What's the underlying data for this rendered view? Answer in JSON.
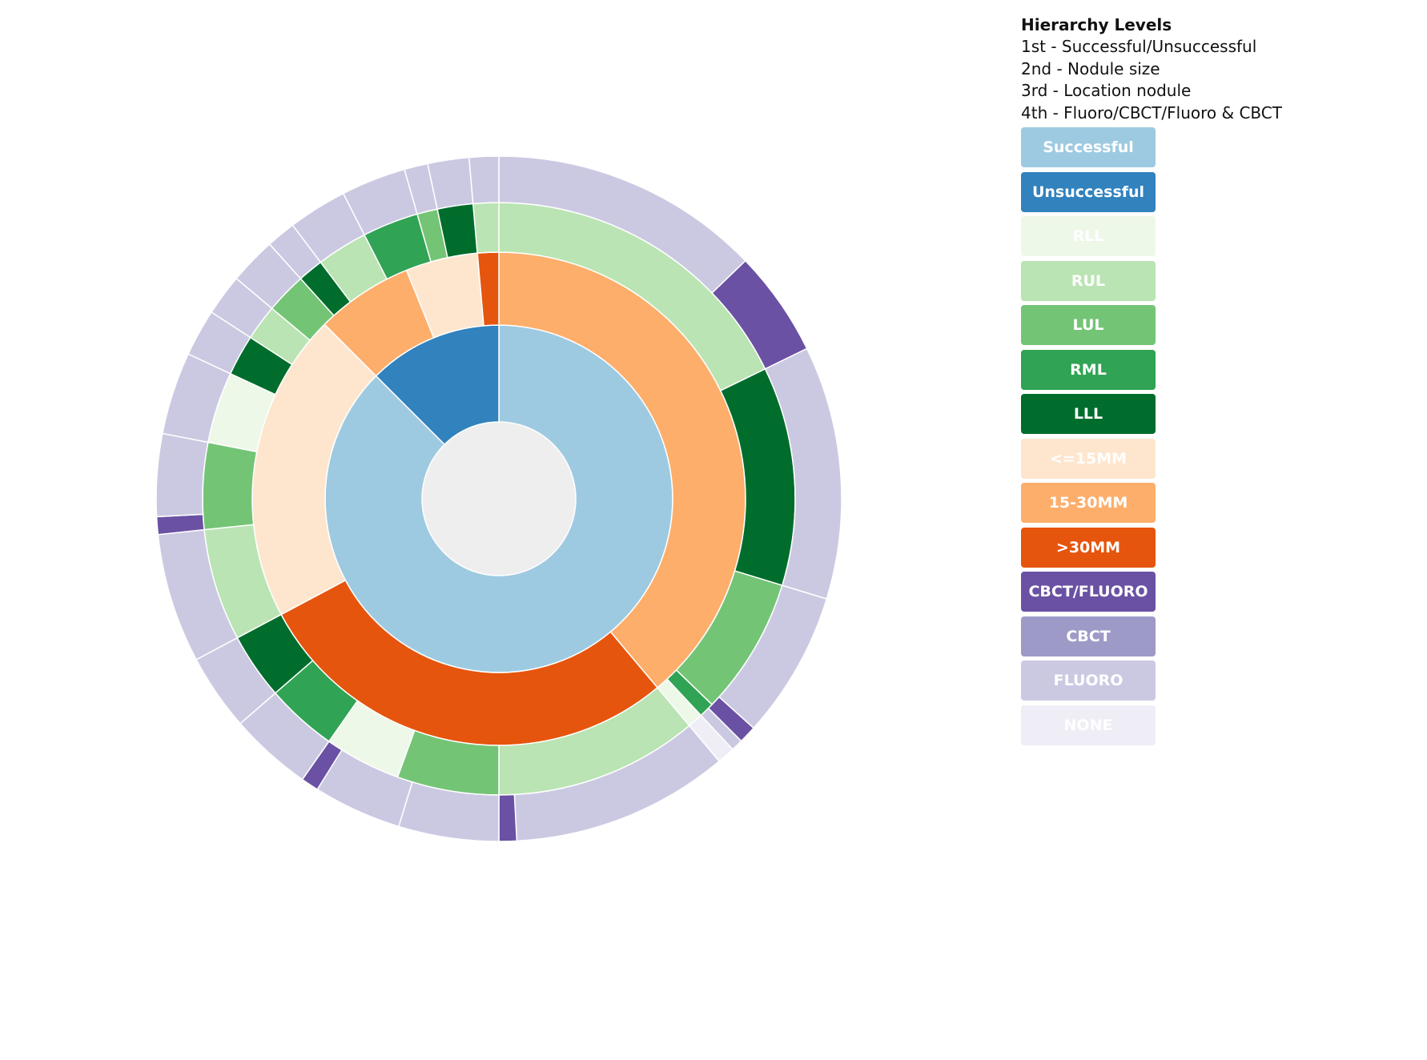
{
  "legend": {
    "title": "Hierarchy Levels",
    "levels": [
      "1st - Successful/Unsuccessful",
      "2nd - Nodule size",
      "3rd - Location nodule",
      "4th - Fluoro/CBCT/Fluoro & CBCT"
    ],
    "items": [
      {
        "label": "Successful",
        "color": "#9ecae1"
      },
      {
        "label": "Unsuccessful",
        "color": "#3182bd"
      },
      {
        "label": "RLL",
        "color": "#edf8e9"
      },
      {
        "label": "RUL",
        "color": "#bae4b3"
      },
      {
        "label": "LUL",
        "color": "#74c476"
      },
      {
        "label": "RML",
        "color": "#31a354"
      },
      {
        "label": "LLL",
        "color": "#006d2c"
      },
      {
        "label": "<=15MM",
        "color": "#fee6ce"
      },
      {
        "label": "15-30MM",
        "color": "#fdae6b"
      },
      {
        "label": ">30MM",
        "color": "#e6550d"
      },
      {
        "label": "CBCT/FLUORO",
        "color": "#6a51a3"
      },
      {
        "label": "CBCT",
        "color": "#9e9ac8"
      },
      {
        "label": "FLUORO",
        "color": "#cbc9e2"
      },
      {
        "label": "NONE",
        "color": "#efedf5"
      }
    ]
  },
  "chart_data": {
    "type": "sunburst",
    "unit": "degrees of full circle (clockwise from 12 o'clock)",
    "center_color": "#eeeeee",
    "rings": [
      {
        "level": "Successful/Unsuccessful",
        "segments": [
          {
            "category": "Successful",
            "start": 0,
            "end": 315
          },
          {
            "category": "Unsuccessful",
            "start": 315,
            "end": 360
          }
        ]
      },
      {
        "level": "Nodule size",
        "segments": [
          {
            "category": "15-30MM",
            "start": 0,
            "end": 140
          },
          {
            "category": ">30MM",
            "start": 140,
            "end": 242
          },
          {
            "category": "<=15MM",
            "start": 242,
            "end": 315
          },
          {
            "category": "15-30MM",
            "start": 315,
            "end": 338
          },
          {
            "category": "<=15MM",
            "start": 338,
            "end": 355
          },
          {
            "category": ">30MM",
            "start": 355,
            "end": 360
          }
        ]
      },
      {
        "level": "Location nodule",
        "segments": [
          {
            "category": "RUL",
            "start": 0,
            "end": 64
          },
          {
            "category": "LLL",
            "start": 64,
            "end": 107
          },
          {
            "category": "LUL",
            "start": 107,
            "end": 134
          },
          {
            "category": "RML",
            "start": 134,
            "end": 137
          },
          {
            "category": "RLL",
            "start": 137,
            "end": 140
          },
          {
            "category": "RUL",
            "start": 140,
            "end": 180
          },
          {
            "category": "LUL",
            "start": 180,
            "end": 200
          },
          {
            "category": "RLL",
            "start": 200,
            "end": 215
          },
          {
            "category": "RML",
            "start": 215,
            "end": 229
          },
          {
            "category": "LLL",
            "start": 229,
            "end": 242
          },
          {
            "category": "RUL",
            "start": 242,
            "end": 264
          },
          {
            "category": "LUL",
            "start": 264,
            "end": 281
          },
          {
            "category": "RLL",
            "start": 281,
            "end": 295
          },
          {
            "category": "LLL",
            "start": 295,
            "end": 303
          },
          {
            "category": "RUL",
            "start": 303,
            "end": 310
          },
          {
            "category": "LUL",
            "start": 310,
            "end": 318
          },
          {
            "category": "LLL",
            "start": 318,
            "end": 323
          },
          {
            "category": "RUL",
            "start": 323,
            "end": 333
          },
          {
            "category": "RML",
            "start": 333,
            "end": 344
          },
          {
            "category": "LUL",
            "start": 344,
            "end": 348
          },
          {
            "category": "LLL",
            "start": 348,
            "end": 355
          },
          {
            "category": "RUL",
            "start": 355,
            "end": 360
          }
        ]
      },
      {
        "level": "Fluoro/CBCT/Fluoro & CBCT",
        "segments": [
          {
            "category": "FLUORO",
            "start": 0,
            "end": 46
          },
          {
            "category": "CBCT/FLUORO",
            "start": 46,
            "end": 64
          },
          {
            "category": "FLUORO",
            "start": 64,
            "end": 107
          },
          {
            "category": "FLUORO",
            "start": 107,
            "end": 132
          },
          {
            "category": "CBCT/FLUORO",
            "start": 132,
            "end": 135
          },
          {
            "category": "FLUORO",
            "start": 135,
            "end": 137
          },
          {
            "category": "NONE",
            "start": 137,
            "end": 140
          },
          {
            "category": "FLUORO",
            "start": 140,
            "end": 177
          },
          {
            "category": "CBCT/FLUORO",
            "start": 177,
            "end": 180
          },
          {
            "category": "FLUORO",
            "start": 180,
            "end": 197
          },
          {
            "category": "FLUORO",
            "start": 197,
            "end": 212
          },
          {
            "category": "CBCT/FLUORO",
            "start": 212,
            "end": 215
          },
          {
            "category": "FLUORO",
            "start": 215,
            "end": 229
          },
          {
            "category": "FLUORO",
            "start": 229,
            "end": 242
          },
          {
            "category": "FLUORO",
            "start": 242,
            "end": 264
          },
          {
            "category": "CBCT/FLUORO",
            "start": 264,
            "end": 267
          },
          {
            "category": "FLUORO",
            "start": 267,
            "end": 281
          },
          {
            "category": "FLUORO",
            "start": 281,
            "end": 295
          },
          {
            "category": "FLUORO",
            "start": 295,
            "end": 303
          },
          {
            "category": "FLUORO",
            "start": 303,
            "end": 310
          },
          {
            "category": "FLUORO",
            "start": 310,
            "end": 318
          },
          {
            "category": "FLUORO",
            "start": 318,
            "end": 323
          },
          {
            "category": "FLUORO",
            "start": 323,
            "end": 333
          },
          {
            "category": "FLUORO",
            "start": 333,
            "end": 344
          },
          {
            "category": "FLUORO",
            "start": 344,
            "end": 348
          },
          {
            "category": "FLUORO",
            "start": 348,
            "end": 355
          },
          {
            "category": "FLUORO",
            "start": 355,
            "end": 360
          }
        ]
      }
    ]
  }
}
